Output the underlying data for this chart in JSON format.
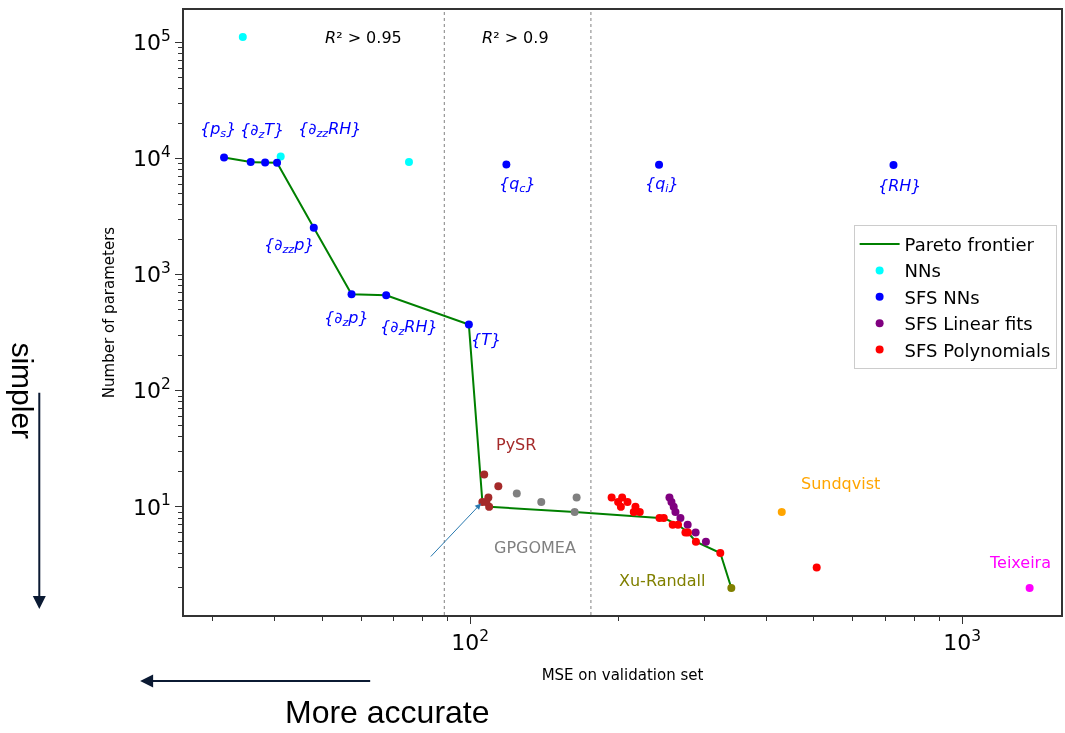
{
  "chart_data": {
    "type": "scatter",
    "xlabel": "MSE on validation set",
    "ylabel": "Number of parameters",
    "log": "xy",
    "legend": "right",
    "marker": "circle",
    "xlim": [
      26.2,
      1589
    ],
    "ylim": [
      1.17,
      190000
    ],
    "xticks": [
      {
        "value": 30,
        "label": null
      },
      {
        "value": 40,
        "label": null
      },
      {
        "value": 50,
        "label": null
      },
      {
        "value": 60,
        "label": null
      },
      {
        "value": 70,
        "label": null
      },
      {
        "value": 80,
        "label": null
      },
      {
        "value": 90,
        "label": null
      },
      {
        "value": 100,
        "label": "10$^{2}$"
      },
      {
        "value": 200,
        "label": null
      },
      {
        "value": 300,
        "label": null
      },
      {
        "value": 400,
        "label": null
      },
      {
        "value": 500,
        "label": null
      },
      {
        "value": 600,
        "label": null
      },
      {
        "value": 700,
        "label": null
      },
      {
        "value": 800,
        "label": null
      },
      {
        "value": 900,
        "label": null
      },
      {
        "value": 1000,
        "label": "10$^{3}$"
      }
    ],
    "yticks": [
      {
        "value": 2,
        "label": null
      },
      {
        "value": 3,
        "label": null
      },
      {
        "value": 4,
        "label": null
      },
      {
        "value": 5,
        "label": null
      },
      {
        "value": 6,
        "label": null
      },
      {
        "value": 7,
        "label": null
      },
      {
        "value": 8,
        "label": null
      },
      {
        "value": 9,
        "label": null
      },
      {
        "value": 10,
        "label": "10$^{1}$"
      },
      {
        "value": 20,
        "label": null
      },
      {
        "value": 30,
        "label": null
      },
      {
        "value": 40,
        "label": null
      },
      {
        "value": 50,
        "label": null
      },
      {
        "value": 60,
        "label": null
      },
      {
        "value": 70,
        "label": null
      },
      {
        "value": 80,
        "label": null
      },
      {
        "value": 90,
        "label": null
      },
      {
        "value": 100,
        "label": "10$^{2}$"
      },
      {
        "value": 200,
        "label": null
      },
      {
        "value": 300,
        "label": null
      },
      {
        "value": 400,
        "label": null
      },
      {
        "value": 500,
        "label": null
      },
      {
        "value": 600,
        "label": null
      },
      {
        "value": 700,
        "label": null
      },
      {
        "value": 800,
        "label": null
      },
      {
        "value": 900,
        "label": null
      },
      {
        "value": 1000,
        "label": "10$^{3}$"
      },
      {
        "value": 2000,
        "label": null
      },
      {
        "value": 3000,
        "label": null
      },
      {
        "value": 4000,
        "label": null
      },
      {
        "value": 5000,
        "label": null
      },
      {
        "value": 6000,
        "label": null
      },
      {
        "value": 7000,
        "label": null
      },
      {
        "value": 8000,
        "label": null
      },
      {
        "value": 9000,
        "label": null
      },
      {
        "value": 10000,
        "label": "10$^{4}$"
      },
      {
        "value": 20000,
        "label": null
      },
      {
        "value": 30000,
        "label": null
      },
      {
        "value": 40000,
        "label": null
      },
      {
        "value": 50000,
        "label": null
      },
      {
        "value": 60000,
        "label": null
      },
      {
        "value": 70000,
        "label": null
      },
      {
        "value": 80000,
        "label": null
      },
      {
        "value": 90000,
        "label": null
      },
      {
        "value": 100000,
        "label": "10$^{5}$"
      }
    ],
    "series": [
      {
        "name": "Pareto frontier",
        "type": "line",
        "marker": "none",
        "color": "#008000",
        "x": [
          31.6,
          35.8,
          38.3,
          40.5,
          48.1,
          57.4,
          67.5,
          99.4,
          105.9,
          109.3,
          163.1,
          242.6,
          247.5,
          264.6,
          277.2,
          287.7,
          322.5,
          339.6
        ],
        "values": [
          10200,
          9310,
          9240,
          9180,
          2530,
          678,
          664,
          371,
          11,
          10,
          9,
          8,
          8,
          7,
          6,
          5,
          4,
          2
        ]
      },
      {
        "name": "NNs",
        "color": "#00ffff",
        "x": [
          34.5,
          41.2,
          75.1
        ],
        "values": [
          111000,
          10400,
          9310
        ]
      },
      {
        "name": "SFS NNs",
        "color": "#0000ff",
        "x": [
          31.6,
          35.8,
          38.3,
          40.5,
          48.1,
          57.4,
          67.5,
          99.4,
          118.5,
          242.1,
          725.4
        ],
        "values": [
          10200,
          9310,
          9240,
          9180,
          2530,
          678,
          664,
          371,
          8880,
          8830,
          8770
        ]
      },
      {
        "name": "SFS Linear fits",
        "color": "#800080",
        "x": [
          254.2,
          256.6,
          259.3,
          261.4,
          267.6,
          276.8,
          287.3,
          301.5
        ],
        "values": [
          12,
          11,
          10,
          9,
          8,
          7,
          6,
          5
        ]
      },
      {
        "name": "SFS Polynomials",
        "color": "#ff0000",
        "x": [
          193.9,
          203.7,
          199.9,
          208.9,
          202.5,
          216.8,
          215.1,
          221.2,
          242.6,
          247.5,
          258.1,
          264.6,
          273.9,
          277.2,
          287.7,
          322.5,
          506.4
        ],
        "values": [
          12,
          12,
          11,
          11,
          10,
          10,
          9,
          9,
          8,
          8,
          7,
          7,
          6,
          6,
          5,
          4,
          3
        ]
      },
      {
        "name": "PySR",
        "color": "#a52a2a",
        "x": [
          106.8,
          114.1,
          105.9,
          108.9,
          109.3,
          107.9
        ],
        "values": [
          19,
          15,
          11,
          12,
          10,
          11
        ]
      },
      {
        "name": "GPGOMEA",
        "color": "#808080",
        "x": [
          124.4,
          139.5,
          164.6,
          163.1
        ],
        "values": [
          13,
          11,
          12,
          9
        ]
      },
      {
        "name": "Xu-Randall",
        "color": "#808000",
        "x": [
          339.6
        ],
        "values": [
          2
        ]
      },
      {
        "name": "Sundqvist",
        "color": "#ffa500",
        "x": [
          430
        ],
        "values": [
          9
        ]
      },
      {
        "name": "Teixeira",
        "color": "#ff00ff",
        "x": [
          1372
        ],
        "values": [
          2
        ]
      }
    ],
    "ref_lines": [
      {
        "axis": "x",
        "value": 88.6,
        "label": "R² > 0.95",
        "color": "#808080",
        "line_style": "dotted"
      },
      {
        "axis": "x",
        "value": 176,
        "label": "R² > 0.9",
        "color": "#808080",
        "line_style": "dotted"
      }
    ],
    "annotations": [
      {
        "text": "{p$_{s}$}",
        "x": 31.6,
        "y": 10200
      },
      {
        "text": "{∂$_{z}$T}",
        "x": 35.8,
        "y": 9310
      },
      {
        "text": "{∂$_{zz}$RH}",
        "x": 40.5,
        "y": 9180
      },
      {
        "text": "{∂$_{zz}$p}",
        "x": 48.1,
        "y": 2530
      },
      {
        "text": "{∂$_{z}$p}",
        "x": 57.4,
        "y": 678
      },
      {
        "text": "{∂$_{z}$RH}",
        "x": 67.5,
        "y": 664
      },
      {
        "text": "{T}",
        "x": 99.4,
        "y": 371
      },
      {
        "text": "{q$_{c}$}",
        "x": 118.5,
        "y": 8880
      },
      {
        "text": "{q$_{i}$}",
        "x": 242.1,
        "y": 8830
      },
      {
        "text": "{RH}",
        "x": 725.4,
        "y": 8770
      },
      "simpler",
      "More accurate"
    ]
  }
}
